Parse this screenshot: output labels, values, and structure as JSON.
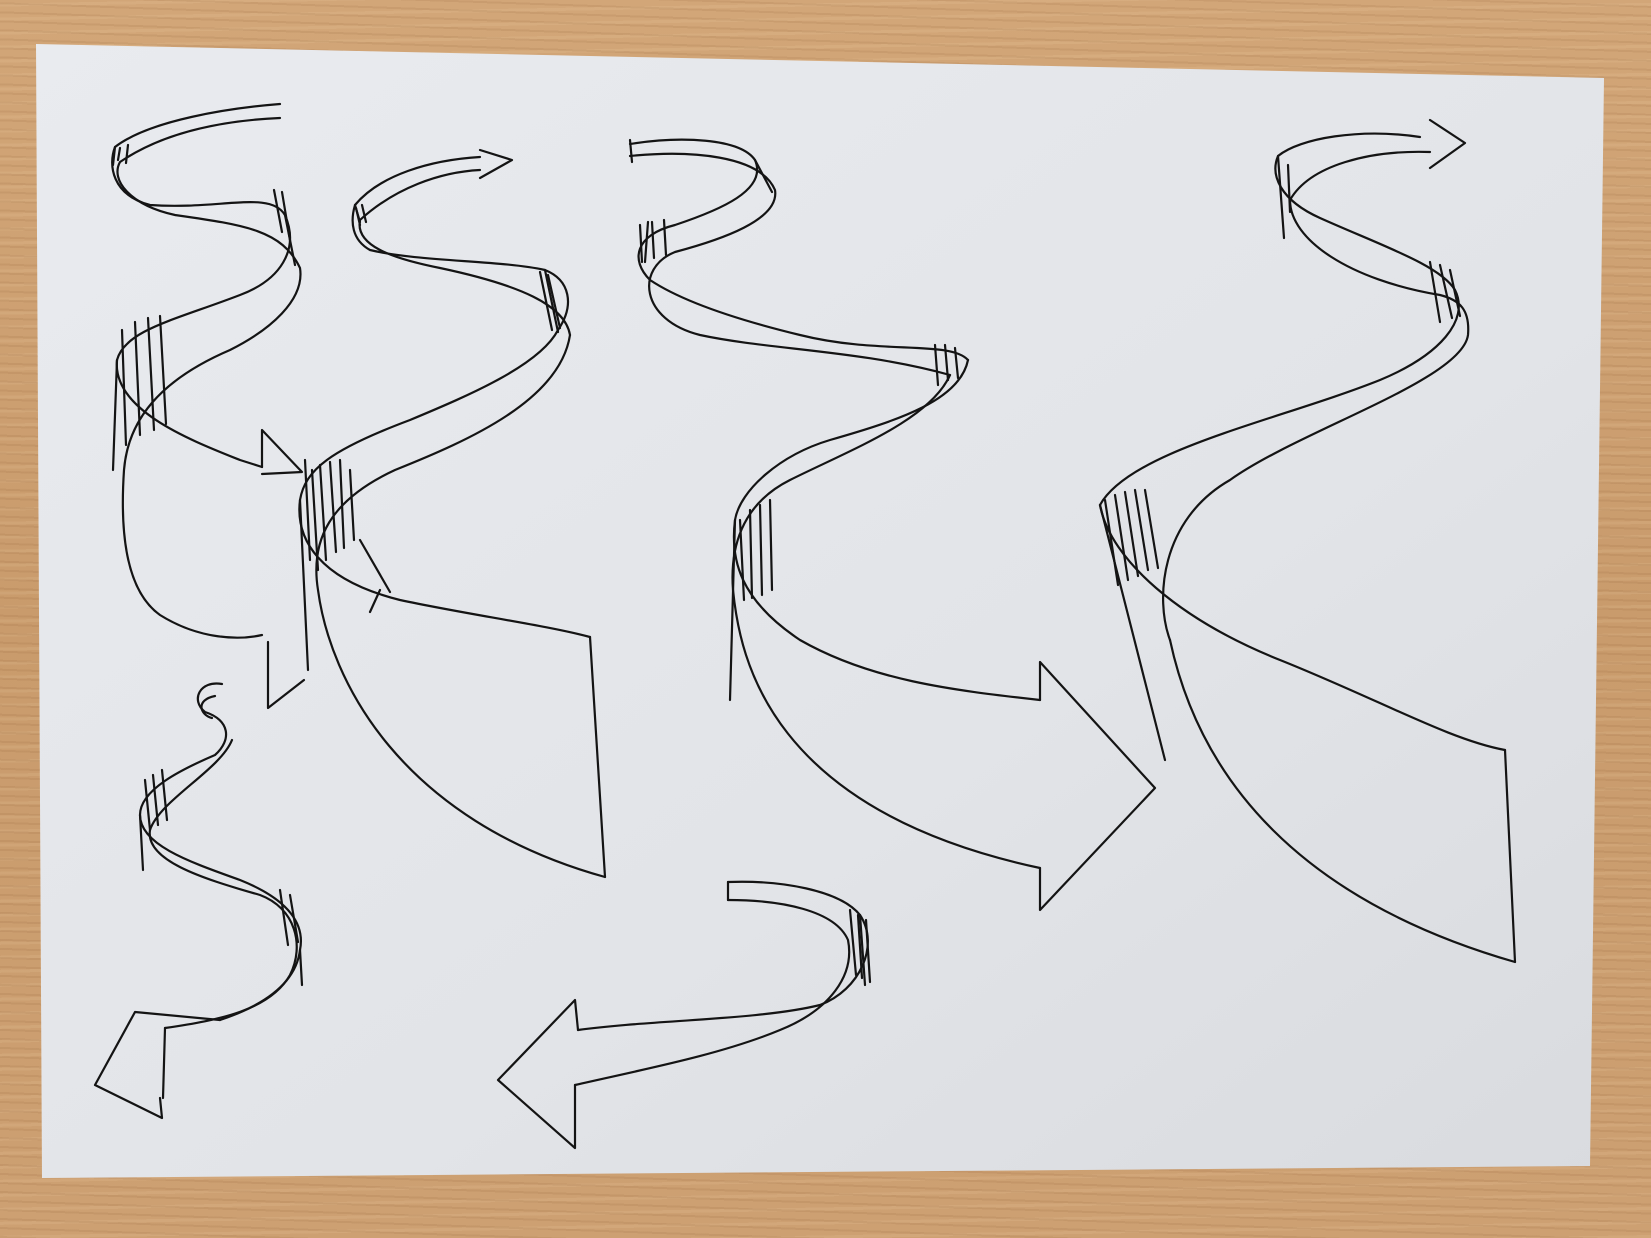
{
  "scene": {
    "surface": "wooden-desk",
    "paper_color": "#e6e8ec",
    "ink_color": "#141414",
    "desk_color": "#c89a6e"
  },
  "drawings": [
    {
      "name": "ribbon-arrow-top-left",
      "direction": "right"
    },
    {
      "name": "ribbon-arrow-small-top",
      "direction": "right"
    },
    {
      "name": "ribbon-arrow-center",
      "direction": "right"
    },
    {
      "name": "ribbon-arrow-large-right",
      "direction": "right"
    },
    {
      "name": "ribbon-arrow-bottom-left",
      "direction": "left"
    },
    {
      "name": "ribbon-arrow-bottom-center",
      "direction": "left"
    },
    {
      "name": "ribbon-band-wide-left",
      "direction": "none"
    },
    {
      "name": "ribbon-band-wide-right",
      "direction": "none"
    }
  ]
}
